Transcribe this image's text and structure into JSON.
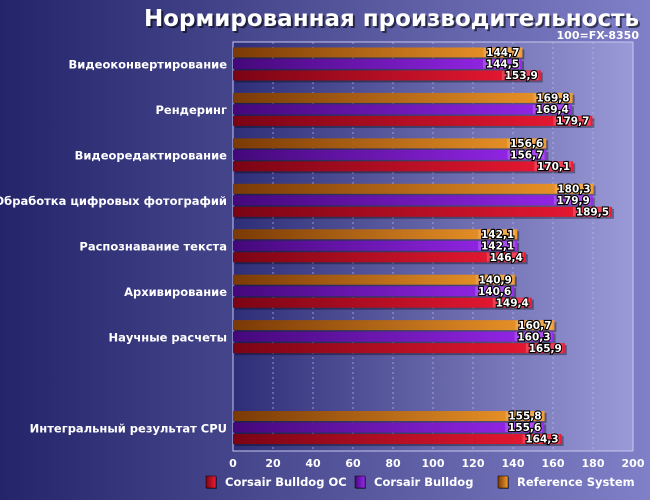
{
  "title": "Нормированная производительность",
  "subtitle": "100=FX-8350",
  "chart_data": {
    "type": "bar",
    "orientation": "horizontal",
    "title": "Нормированная производительность",
    "subtitle": "100=FX-8350",
    "categories": [
      "Видеоконвертирование",
      "Рендеринг",
      "Видеоредактирование",
      "Обработка цифровых фотографий",
      "Распознавание текста",
      "Архивирование",
      "Научные расчеты",
      "",
      "Интегральный результат CPU"
    ],
    "series": [
      {
        "name": "Reference System",
        "color": "#f08a1c",
        "values": [
          144.7,
          169.8,
          156.6,
          180.3,
          142.1,
          140.9,
          160.7,
          null,
          155.8
        ]
      },
      {
        "name": "Corsair Bulldog",
        "color": "#8a18e8",
        "values": [
          144.5,
          169.4,
          156.7,
          179.9,
          142.1,
          140.6,
          160.3,
          null,
          155.6
        ]
      },
      {
        "name": "Corsair Bulldog OC",
        "color": "#e8102a",
        "values": [
          153.9,
          179.7,
          170.1,
          189.5,
          146.4,
          149.4,
          165.9,
          null,
          164.3
        ]
      }
    ],
    "value_labels": [
      [
        "144,7",
        "144,5",
        "153,9"
      ],
      [
        "169,8",
        "169,4",
        "179,7"
      ],
      [
        "156,6",
        "156,7",
        "170,1"
      ],
      [
        "180,3",
        "179,9",
        "189,5"
      ],
      [
        "142,1",
        "142,1",
        "146,4"
      ],
      [
        "140,9",
        "140,6",
        "149,4"
      ],
      [
        "160,7",
        "160,3",
        "165,9"
      ],
      [
        null,
        null,
        null
      ],
      [
        "155,8",
        "155,6",
        "164,3"
      ]
    ],
    "xlim": [
      0,
      200
    ],
    "xticks": [
      "0",
      "20",
      "40",
      "60",
      "80",
      "100",
      "120",
      "140",
      "160",
      "180",
      "200"
    ],
    "grid": true,
    "legend_position": "bottom",
    "legend": [
      "Corsair Bulldog OC",
      "Corsair Bulldog",
      "Reference System"
    ]
  }
}
